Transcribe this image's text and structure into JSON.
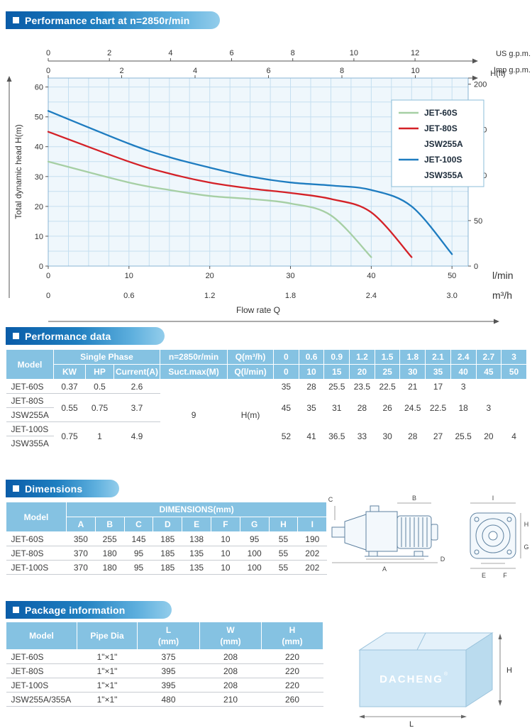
{
  "banners": {
    "chart": "Performance chart at n=2850r/min",
    "performance": "Performance data",
    "dimensions": "Dimensions",
    "package": "Package information"
  },
  "chart_data": {
    "type": "line",
    "title": "Performance chart at n=2850r/min",
    "xlabel": "Flow rate Q",
    "ylabel": "Total dynamic head H(m)",
    "x_axis_lpm": {
      "unit": "l/min",
      "ticks": [
        "0",
        "10",
        "20",
        "30",
        "40",
        "50"
      ]
    },
    "x_axis_m3h": {
      "unit": "m³/h",
      "ticks": [
        "0",
        "0.6",
        "1.2",
        "1.8",
        "2.4",
        "3.0"
      ]
    },
    "top_axis_usgpm": {
      "unit": "US g.p.m.",
      "ticks": [
        "0",
        "2",
        "4",
        "6",
        "8",
        "10",
        "12"
      ],
      "lpm_per_unit": 3.785
    },
    "top_axis_impgpm": {
      "unit": "Imp g.p.m.",
      "ticks": [
        "0",
        "2",
        "4",
        "6",
        "8",
        "10"
      ],
      "lpm_per_unit": 4.546
    },
    "y_axis": {
      "unit": "H(m)",
      "ticks": [
        "0",
        "10",
        "20",
        "30",
        "40",
        "50",
        "60"
      ]
    },
    "right_axis": {
      "unit": "H(ft)",
      "ticks": [
        "0",
        "50",
        "100",
        "150",
        "200"
      ],
      "m_per_ft": 0.3048
    },
    "xlim_lpm": [
      0,
      52
    ],
    "ylim_m": [
      0,
      63
    ],
    "grid": true,
    "legend_position": "upper right",
    "series": [
      {
        "name": "JET-60S",
        "color": "#a6cfa4",
        "points_lpm_m": [
          [
            0,
            35
          ],
          [
            10,
            28
          ],
          [
            15,
            25.5
          ],
          [
            20,
            23.5
          ],
          [
            25,
            22.5
          ],
          [
            30,
            21
          ],
          [
            35,
            17
          ],
          [
            40,
            3
          ]
        ]
      },
      {
        "name": "JET-80S / JSW255A",
        "color": "#d42127",
        "points_lpm_m": [
          [
            0,
            45
          ],
          [
            10,
            35
          ],
          [
            15,
            31
          ],
          [
            20,
            28
          ],
          [
            25,
            26
          ],
          [
            30,
            24.5
          ],
          [
            35,
            22.5
          ],
          [
            40,
            18
          ],
          [
            45,
            3
          ]
        ]
      },
      {
        "name": "JET-100S / JSW355A",
        "color": "#1e7cc0",
        "points_lpm_m": [
          [
            0,
            52
          ],
          [
            10,
            41
          ],
          [
            15,
            36.5
          ],
          [
            20,
            33
          ],
          [
            25,
            30
          ],
          [
            30,
            28
          ],
          [
            35,
            27
          ],
          [
            40,
            25.5
          ],
          [
            45,
            20
          ],
          [
            50,
            4
          ]
        ]
      }
    ],
    "legend": [
      {
        "label": "JET-60S",
        "color": "#a6cfa4"
      },
      {
        "label": "JET-80S",
        "color": "#d42127"
      },
      {
        "label": "JSW255A",
        "color": null
      },
      {
        "label": "JET-100S",
        "color": "#1e7cc0"
      },
      {
        "label": "JSW355A",
        "color": null
      }
    ]
  },
  "performance_table": {
    "header": {
      "model": "Model",
      "single_phase": "Single Phase",
      "kw": "KW",
      "hp": "HP",
      "current": "Current(A)",
      "speed": "n=2850r/min",
      "suct": "Suct.max(M)",
      "q_m3h": "Q(m³/h)",
      "q_lmin": "Q(l/min)",
      "q_m3h_values": [
        "0",
        "0.6",
        "0.9",
        "1.2",
        "1.5",
        "1.8",
        "2.1",
        "2.4",
        "2.7",
        "3"
      ],
      "q_lmin_values": [
        "0",
        "10",
        "15",
        "20",
        "25",
        "30",
        "35",
        "40",
        "45",
        "50"
      ]
    },
    "suct_value": "9",
    "hm_label": "H(m)",
    "groups": [
      {
        "models": [
          "JET-60S"
        ],
        "kw": "0.37",
        "hp": "0.5",
        "current": "2.6",
        "h_values": [
          "35",
          "28",
          "25.5",
          "23.5",
          "22.5",
          "21",
          "17",
          "3",
          "",
          ""
        ]
      },
      {
        "models": [
          "JET-80S",
          "JSW255A"
        ],
        "kw": "0.55",
        "hp": "0.75",
        "current": "3.7",
        "h_values": [
          "45",
          "35",
          "31",
          "28",
          "26",
          "24.5",
          "22.5",
          "18",
          "3",
          ""
        ]
      },
      {
        "models": [
          "JET-100S",
          "JSW355A"
        ],
        "kw": "0.75",
        "hp": "1",
        "current": "4.9",
        "h_values": [
          "52",
          "41",
          "36.5",
          "33",
          "30",
          "28",
          "27",
          "25.5",
          "20",
          "4"
        ]
      }
    ]
  },
  "dimensions_table": {
    "model_header": "Model",
    "group_header": "DIMENSIONS(mm)",
    "columns": [
      "A",
      "B",
      "C",
      "D",
      "E",
      "F",
      "G",
      "H",
      "I"
    ],
    "rows": [
      {
        "model": "JET-60S",
        "values": [
          "350",
          "255",
          "145",
          "185",
          "138",
          "10",
          "95",
          "55",
          "190"
        ]
      },
      {
        "model": "JET-80S",
        "values": [
          "370",
          "180",
          "95",
          "185",
          "135",
          "10",
          "100",
          "55",
          "202"
        ]
      },
      {
        "model": "JET-100S",
        "values": [
          "370",
          "180",
          "95",
          "185",
          "135",
          "10",
          "100",
          "55",
          "202"
        ]
      }
    ]
  },
  "package_table": {
    "model_header": "Model",
    "pipe_header": "Pipe Dia",
    "dim_headers": [
      "L",
      "W",
      "H"
    ],
    "dim_sub": "(mm)",
    "rows": [
      {
        "model": "JET-60S",
        "pipe": "1\"×1\"",
        "l": "375",
        "w": "208",
        "h": "220"
      },
      {
        "model": "JET-80S",
        "pipe": "1\"×1\"",
        "l": "395",
        "w": "208",
        "h": "220"
      },
      {
        "model": "JET-100S",
        "pipe": "1\"×1\"",
        "l": "395",
        "w": "208",
        "h": "220"
      },
      {
        "model": "JSW255A/355A",
        "pipe": "1\"×1\"",
        "l": "480",
        "w": "210",
        "h": "260"
      }
    ]
  },
  "drawings": {
    "dim_labels": [
      "A",
      "B",
      "C",
      "D",
      "E",
      "F",
      "G",
      "H",
      "I"
    ]
  },
  "package_box": {
    "brand": "DACHENG",
    "reg": "®",
    "h_label": "H",
    "l_label": "L"
  }
}
